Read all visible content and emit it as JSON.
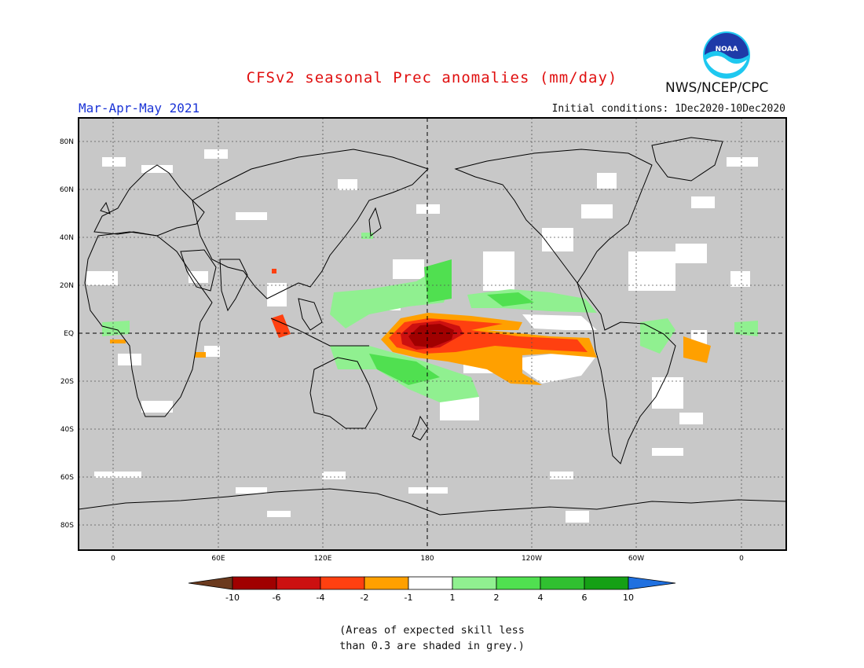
{
  "header": {
    "title": "CFSv2 seasonal Prec anomalies (mm/day)",
    "agency": "NWS/NCEP/CPC",
    "logo_text": "NOAA",
    "period": "Mar-Apr-May 2021",
    "initial_conditions": "Initial conditions: 1Dec2020-10Dec2020"
  },
  "map": {
    "lat_labels": [
      "80N",
      "60N",
      "40N",
      "20N",
      "EQ",
      "20S",
      "40S",
      "60S",
      "80S"
    ],
    "lon_labels": [
      "0",
      "60E",
      "120E",
      "180",
      "120W",
      "60W",
      "0"
    ],
    "land_color": "#c8c8c8",
    "grid": "dotted"
  },
  "colorbar": {
    "ticks": [
      "-10",
      "-6",
      "-4",
      "-2",
      "-1",
      "1",
      "2",
      "4",
      "6",
      "10"
    ],
    "colors": [
      "#6b3a1e",
      "#a00000",
      "#cc1010",
      "#ff4010",
      "#ffa000",
      "#ffffff",
      "#90f090",
      "#50e050",
      "#30c030",
      "#15a015",
      "#2070e0"
    ]
  },
  "footnote": {
    "line1": "(Areas of expected skill less",
    "line2": "than 0.3 are shaded in grey.)"
  },
  "colors": {
    "title": "#e01010",
    "period": "#1a33d6",
    "grey_mask": "#c8c8c8",
    "dry_strong": "#a00000",
    "dry": "#ff4010",
    "dry_light": "#ffa000",
    "wet_light": "#90f090",
    "wet": "#50e050"
  }
}
